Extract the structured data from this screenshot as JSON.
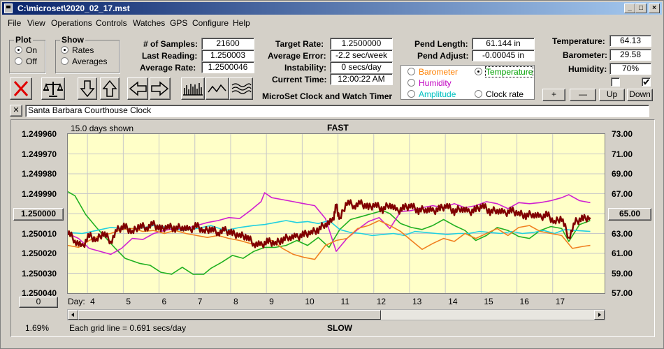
{
  "window": {
    "title": "C:\\microset\\2020_02_17.mst",
    "menu": [
      "File",
      "View",
      "Operations",
      "Controls",
      "Watches",
      "GPS",
      "Configure",
      "Help"
    ]
  },
  "plot_group": {
    "title": "Plot",
    "on": "On",
    "off": "Off",
    "selected": "On"
  },
  "show_group": {
    "title": "Show",
    "rates": "Rates",
    "averages": "Averages",
    "selected": "Rates"
  },
  "stats": {
    "samples_label": "# of Samples:",
    "samples_value": "21600",
    "last_label": "Last Reading:",
    "last_value": "1.250003",
    "avg_label": "Average Rate:",
    "avg_value": "1.2500046",
    "target_label": "Target Rate:",
    "target_value": "1.2500000",
    "avgerr_label": "Average Error:",
    "avgerr_value": "-2.2 sec/week",
    "instab_label": "Instability:",
    "instab_value": "0 secs/day",
    "time_label": "Current Time:",
    "time_value": "12:00:22 AM",
    "pendlen_label": "Pend Length:",
    "pendlen_value": "61.144 in",
    "pendadj_label": "Pend Adjust:",
    "pendadj_value": "-0.00045 in",
    "temp_label": "Temperature:",
    "temp_value": "64.13",
    "baro_label": "Barometer:",
    "baro_value": "29.58",
    "hum_label": "Humidity:",
    "hum_value": "70%"
  },
  "app_caption": "MicroSet Clock and Watch Timer",
  "legend": {
    "barometer": "Barometer",
    "temperature": "Temperature",
    "humidity": "Humidity",
    "amplitude": "Amplitude",
    "clock_rate": "Clock rate",
    "selected": "Temperature",
    "colors": {
      "barometer": "#ff8000",
      "temperature": "#00a000",
      "humidity": "#c000c0",
      "amplitude": "#00c0c0",
      "clock_rate": "#000000"
    }
  },
  "right_buttons": {
    "plus": "+",
    "minus": "—",
    "up": "Up",
    "down": "Down"
  },
  "checkboxes": {
    "left_checked": false,
    "right_checked": true
  },
  "toolbar_icons": [
    "delete-x-icon",
    "balance-scale-icon",
    "arrow-down-icon",
    "arrow-up-icon",
    "arrow-left-icon",
    "arrow-right-icon",
    "bar-plot-icon",
    "wave-plot-icon",
    "multi-wave-plot-icon"
  ],
  "description": {
    "close": "✕",
    "text": "Santa Barbara Courthouse Clock"
  },
  "chart_labels": {
    "days_shown": "15.0 days shown",
    "fast": "FAST",
    "slow": "SLOW",
    "day": "Day:",
    "grid_note": "Each grid line = 0.691 secs/day",
    "percent": "1.69%",
    "left_center_button": "1.250000",
    "left_bottom_button": "0",
    "right_center_button": "65.00"
  },
  "chart_data": {
    "type": "line",
    "x_label": "Day:",
    "x_ticks": [
      4,
      5,
      6,
      7,
      8,
      9,
      10,
      11,
      12,
      13,
      14,
      15,
      16,
      17
    ],
    "xlim": [
      3.0,
      18.0
    ],
    "left_axis": {
      "ticks": [
        "1.249960",
        "1.249970",
        "1.249980",
        "1.249990",
        "1.250000",
        "1.250010",
        "1.250020",
        "1.250030",
        "1.250040"
      ],
      "ylim_top": 1.24996,
      "ylim_bottom": 1.25004
    },
    "right_axis": {
      "ticks": [
        "73.00",
        "71.00",
        "69.00",
        "67.00",
        "65.00",
        "63.00",
        "61.00",
        "59.00",
        "57.00"
      ],
      "ylim": [
        57,
        73
      ]
    },
    "series": [
      {
        "name": "Temperature",
        "color": "#20b020",
        "x": [
          3.0,
          3.2,
          3.5,
          3.8,
          4.0,
          4.3,
          4.6,
          5.0,
          5.3,
          5.6,
          5.9,
          6.2,
          6.5,
          6.8,
          7.0,
          7.3,
          7.6,
          7.9,
          8.2,
          8.5,
          8.8,
          9.1,
          9.4,
          9.7,
          10.0,
          10.3,
          10.6,
          10.9,
          11.2,
          11.5,
          11.8,
          12.0,
          12.3,
          12.6,
          12.9,
          13.2,
          13.5,
          13.8,
          14.1,
          14.4,
          14.7,
          15.0,
          15.3,
          15.6,
          15.9,
          16.2,
          16.5,
          16.8,
          17.0,
          17.3,
          17.6
        ],
        "y": [
          67.2,
          66.8,
          64.9,
          63.6,
          62.8,
          61.6,
          60.5,
          60.0,
          59.8,
          59.1,
          58.9,
          59.6,
          58.9,
          58.9,
          59.5,
          60.1,
          60.8,
          60.5,
          61.2,
          61.6,
          61.6,
          61.8,
          62.3,
          61.8,
          62.6,
          61.6,
          63.4,
          64.4,
          64.7,
          65.0,
          65.3,
          65.0,
          64.0,
          63.6,
          63.4,
          63.8,
          64.4,
          63.8,
          63.3,
          62.3,
          62.8,
          63.6,
          63.3,
          62.7,
          62.5,
          63.3,
          63.7,
          63.5,
          62.2,
          63.9,
          64.3
        ]
      },
      {
        "name": "Humidity",
        "color": "#d020d0",
        "x": [
          3.0,
          3.3,
          3.6,
          3.9,
          4.2,
          4.5,
          4.8,
          5.1,
          5.4,
          5.7,
          6.0,
          6.3,
          6.6,
          6.9,
          7.2,
          7.5,
          7.8,
          8.1,
          8.4,
          8.5,
          8.7,
          9.0,
          9.3,
          9.6,
          9.9,
          10.2,
          10.5,
          10.8,
          11.1,
          11.4,
          11.7,
          12.0,
          12.3,
          12.6,
          12.9,
          13.2,
          13.5,
          13.8,
          14.1,
          14.4,
          14.7,
          15.0,
          15.3,
          15.6,
          15.9,
          16.2,
          16.5,
          16.8,
          17.0,
          17.3,
          17.6
        ],
        "y": [
          63.0,
          62.5,
          61.5,
          61.2,
          60.9,
          61.5,
          62.5,
          62.4,
          63.0,
          63.3,
          63.5,
          63.5,
          63.8,
          64.1,
          64.3,
          64.6,
          64.5,
          65.3,
          66.2,
          67.1,
          66.6,
          66.4,
          66.2,
          66.0,
          65.8,
          64.5,
          61.2,
          62.5,
          63.4,
          64.2,
          64.6,
          63.5,
          65.2,
          65.3,
          65.6,
          65.8,
          65.6,
          66.0,
          65.6,
          65.8,
          66.2,
          66.0,
          65.5,
          66.1,
          66.0,
          66.1,
          66.3,
          66.6,
          66.9,
          66.3,
          66.1
        ]
      },
      {
        "name": "Amplitude",
        "color": "#20d0e0",
        "x": [
          3.0,
          3.4,
          3.8,
          4.2,
          4.6,
          5.0,
          5.4,
          5.8,
          6.2,
          6.6,
          7.0,
          7.4,
          7.8,
          8.2,
          8.5,
          8.8,
          9.1,
          9.4,
          9.7,
          10.0,
          10.3,
          10.6,
          10.9,
          11.2,
          11.5,
          11.8,
          12.1,
          12.4,
          12.7,
          13.0,
          13.3,
          13.6,
          13.9,
          14.2,
          14.5,
          14.8,
          15.1,
          15.4,
          15.7,
          16.0,
          16.3,
          16.6,
          16.9,
          17.2,
          17.6
        ],
        "y": [
          63.1,
          63.0,
          63.3,
          63.6,
          63.5,
          63.5,
          63.8,
          63.6,
          63.3,
          63.5,
          63.8,
          63.3,
          63.6,
          63.8,
          63.9,
          64.1,
          64.3,
          64.1,
          64.2,
          64.0,
          64.3,
          63.4,
          63.1,
          63.0,
          62.8,
          62.9,
          63.0,
          62.8,
          63.2,
          63.1,
          63.0,
          62.9,
          63.0,
          63.0,
          63.2,
          63.1,
          63.0,
          63.2,
          63.0,
          63.1,
          63.3,
          63.0,
          63.4,
          63.3,
          63.2
        ]
      },
      {
        "name": "Barometer",
        "color": "#f08020",
        "x": [
          3.0,
          3.3,
          3.6,
          3.9,
          4.2,
          4.5,
          4.8,
          5.1,
          5.4,
          5.7,
          6.0,
          6.3,
          6.6,
          6.9,
          7.2,
          7.5,
          7.8,
          8.1,
          8.4,
          8.7,
          9.0,
          9.3,
          9.6,
          9.9,
          10.2,
          10.5,
          10.8,
          11.1,
          11.4,
          11.7,
          12.0,
          12.3,
          12.6,
          12.9,
          13.2,
          13.5,
          13.8,
          14.1,
          14.4,
          14.7,
          15.0,
          15.3,
          15.6,
          15.9,
          16.2,
          16.5,
          16.8,
          17.1,
          17.4,
          17.6
        ],
        "y": [
          61.8,
          61.6,
          62.3,
          62.8,
          63.0,
          63.4,
          63.5,
          63.2,
          63.3,
          63.0,
          63.3,
          63.0,
          62.8,
          62.6,
          62.8,
          62.5,
          62.3,
          62.0,
          61.8,
          62.3,
          61.5,
          60.9,
          60.6,
          60.4,
          61.8,
          62.3,
          62.5,
          63.5,
          63.8,
          64.3,
          63.8,
          63.2,
          62.3,
          61.4,
          62.0,
          62.5,
          62.2,
          63.0,
          62.5,
          63.0,
          63.5,
          62.8,
          63.6,
          63.8,
          63.2,
          63.0,
          62.8,
          61.5,
          61.7,
          61.8
        ]
      },
      {
        "name": "Clock rate",
        "color": "#800000",
        "x": [
          3.0,
          3.2,
          3.4,
          3.6,
          3.8,
          4.0,
          4.2,
          4.4,
          4.6,
          4.8,
          5.0,
          5.2,
          5.4,
          5.6,
          5.8,
          6.0,
          6.2,
          6.4,
          6.6,
          6.8,
          7.0,
          7.2,
          7.4,
          7.6,
          7.8,
          8.0,
          8.2,
          8.4,
          8.6,
          8.8,
          9.0,
          9.2,
          9.4,
          9.6,
          9.8,
          10.0,
          10.2,
          10.4,
          10.5,
          10.6,
          10.8,
          11.0,
          11.2,
          11.4,
          11.6,
          11.8,
          12.0,
          12.2,
          12.4,
          12.6,
          12.8,
          13.0,
          13.2,
          13.4,
          13.6,
          13.8,
          14.0,
          14.2,
          14.4,
          14.6,
          14.8,
          15.0,
          15.2,
          15.4,
          15.6,
          15.8,
          16.0,
          16.2,
          16.4,
          16.6,
          16.8,
          17.0,
          17.2,
          17.4,
          17.6
        ],
        "y": [
          63.2,
          62.3,
          61.6,
          62.8,
          62.3,
          63.1,
          62.2,
          63.4,
          63.7,
          63.1,
          63.8,
          63.6,
          63.9,
          63.4,
          63.7,
          63.5,
          63.7,
          63.3,
          63.8,
          63.2,
          63.5,
          63.1,
          63.3,
          63.0,
          62.8,
          62.7,
          62.0,
          61.8,
          62.2,
          62.0,
          62.4,
          62.7,
          62.6,
          62.9,
          63.1,
          63.4,
          64.0,
          64.2,
          65.8,
          64.4,
          66.2,
          65.8,
          66.0,
          65.6,
          65.9,
          65.4,
          66.0,
          65.2,
          65.6,
          65.8,
          65.3,
          65.5,
          65.2,
          65.5,
          65.8,
          65.2,
          65.6,
          65.1,
          65.4,
          65.8,
          65.2,
          65.4,
          65.0,
          65.3,
          65.0,
          64.8,
          65.0,
          64.6,
          64.9,
          64.1,
          64.6,
          62.6,
          64.2,
          64.5,
          64.6
        ]
      }
    ]
  }
}
